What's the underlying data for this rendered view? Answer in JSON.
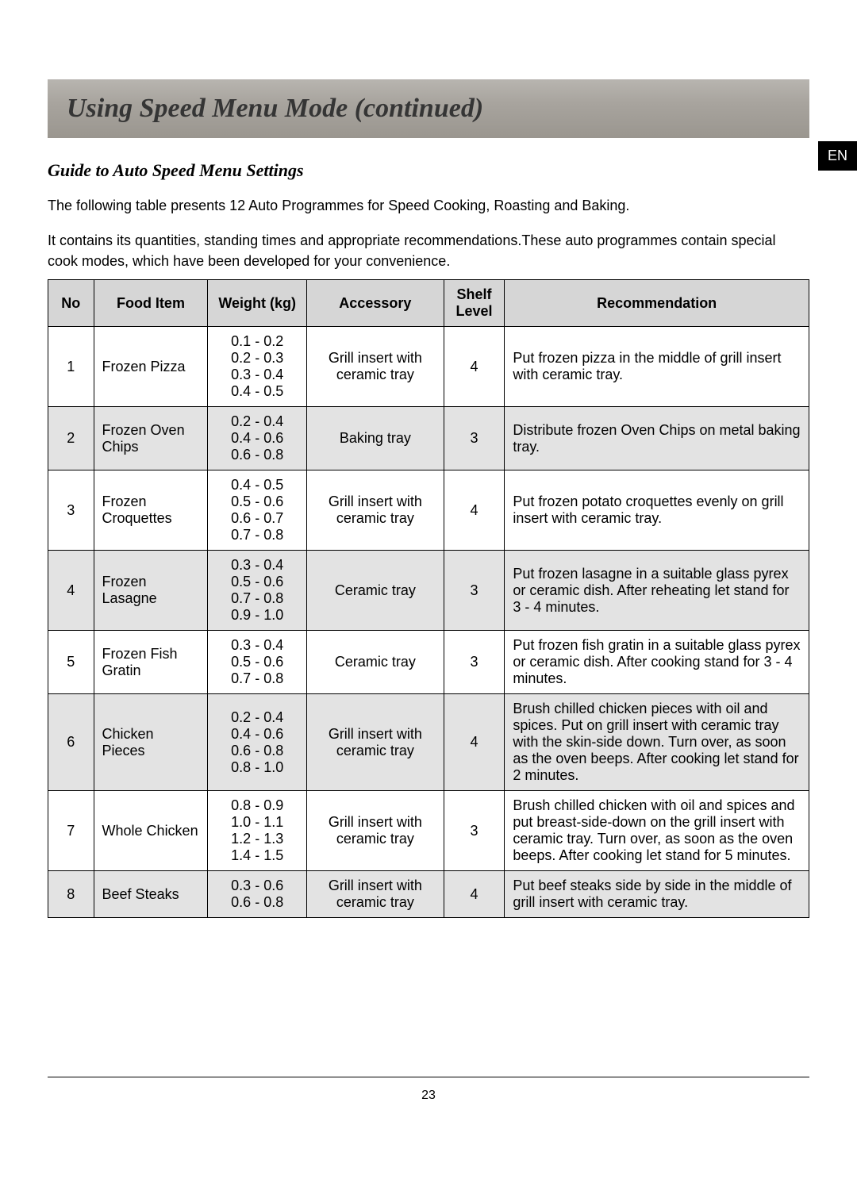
{
  "colors": {
    "page_bg": "#ffffff",
    "text": "#000000",
    "title_bar_gradient_top": "#b8b5b0",
    "title_bar_gradient_mid": "#a8a49e",
    "title_bar_gradient_bot": "#9a968f",
    "title_text": "#353535",
    "lang_tab_bg": "#000000",
    "lang_tab_text": "#ffffff",
    "table_border": "#000000",
    "header_bg": "#d6d6d6",
    "row_shade_bg": "#e3e3e3"
  },
  "typography": {
    "title_family": "Times New Roman, serif",
    "title_style": "italic bold",
    "title_size_pt": 26,
    "subtitle_size_pt": 17,
    "body_family": "Arial, sans-serif",
    "body_size_pt": 14,
    "th_weight": "bold"
  },
  "lang_tab": "EN",
  "title": "Using Speed Menu Mode (continued)",
  "subtitle": "Guide to Auto Speed Menu Settings",
  "intro_lines": {
    "l1": "The following table presents 12 Auto Programmes for Speed Cooking, Roasting and Baking.",
    "l2": "It contains its quantities, standing times and appropriate recommendations.These auto programmes contain special cook modes, which have been developed for your convenience."
  },
  "table": {
    "columns": [
      "No",
      "Food Item",
      "Weight (kg)",
      "Accessory",
      "Shelf Level",
      "Recommendation"
    ],
    "col_widths_pct": [
      6,
      15,
      13,
      18,
      8,
      40
    ],
    "header_align": "center",
    "rows": [
      {
        "no": "1",
        "food": "Frozen Pizza",
        "weights": "0.1 - 0.2\n0.2 - 0.3\n0.3 - 0.4\n0.4 - 0.5",
        "accessory": "Grill insert with ceramic tray",
        "shelf": "4",
        "recommendation": "Put frozen pizza in the middle of grill insert with ceramic tray.",
        "shaded": false
      },
      {
        "no": "2",
        "food": "Frozen Oven Chips",
        "weights": "0.2 - 0.4\n0.4 - 0.6\n0.6 - 0.8",
        "accessory": "Baking tray",
        "shelf": "3",
        "recommendation": "Distribute frozen Oven Chips on metal baking tray.",
        "shaded": true
      },
      {
        "no": "3",
        "food": "Frozen Croquettes",
        "weights": "0.4 - 0.5\n0.5 - 0.6\n0.6 - 0.7\n0.7 - 0.8",
        "accessory": "Grill insert with ceramic tray",
        "shelf": "4",
        "recommendation": "Put frozen potato croquettes evenly on grill insert with ceramic tray.",
        "shaded": false
      },
      {
        "no": "4",
        "food": "Frozen Lasagne",
        "weights": "0.3 - 0.4\n0.5 - 0.6\n0.7 - 0.8\n0.9 - 1.0",
        "accessory": "Ceramic tray",
        "shelf": "3",
        "recommendation": "Put frozen lasagne in a suitable glass pyrex or ceramic dish. After reheating let stand for 3 - 4 minutes.",
        "shaded": true
      },
      {
        "no": "5",
        "food": "Frozen Fish Gratin",
        "weights": "0.3 - 0.4\n0.5 - 0.6\n0.7 - 0.8",
        "accessory": "Ceramic tray",
        "shelf": "3",
        "recommendation": "Put frozen fish gratin in a suitable glass pyrex or ceramic dish. After cooking stand for 3 - 4 minutes.",
        "shaded": false
      },
      {
        "no": "6",
        "food": "Chicken Pieces",
        "weights": "0.2 - 0.4\n0.4 - 0.6\n0.6 - 0.8\n0.8 - 1.0",
        "accessory": "Grill insert with ceramic tray",
        "shelf": "4",
        "recommendation": "Brush chilled chicken pieces with oil and spices. Put on grill insert with ceramic tray with the skin-side down. Turn over, as soon as the oven beeps. After cooking let stand for 2 minutes.",
        "shaded": true
      },
      {
        "no": "7",
        "food": "Whole Chicken",
        "weights": "0.8 - 0.9\n1.0 - 1.1\n1.2 - 1.3\n1.4 - 1.5",
        "accessory": "Grill insert with ceramic tray",
        "shelf": "3",
        "recommendation": "Brush chilled chicken with oil and spices and put breast-side-down on the grill insert with ceramic tray. Turn over, as soon as the oven beeps. After cooking let stand for 5 minutes.",
        "shaded": false
      },
      {
        "no": "8",
        "food": "Beef Steaks",
        "weights": "0.3 - 0.6\n0.6 - 0.8",
        "accessory": "Grill insert with ceramic tray",
        "shelf": "4",
        "recommendation": "Put beef steaks side by side in the middle of grill insert with ceramic tray.",
        "shaded": true
      }
    ]
  },
  "page_number": "23"
}
